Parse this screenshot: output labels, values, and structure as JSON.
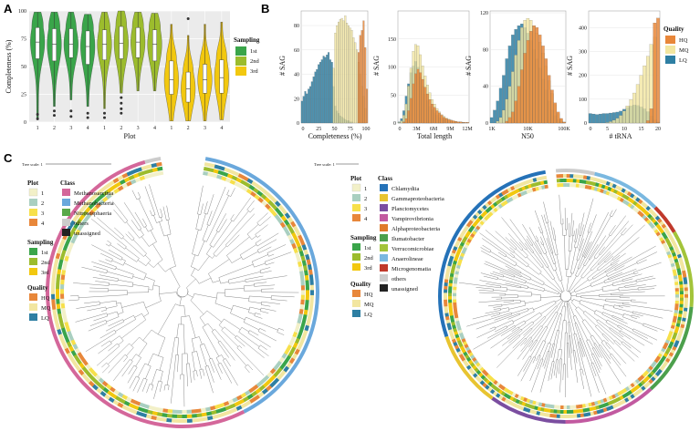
{
  "panels": {
    "a": "A",
    "b": "B",
    "c": "C"
  },
  "colors": {
    "sampling_1st": "#3aa54a",
    "sampling_2nd": "#9cbc2d",
    "sampling_3rd": "#f2c80f",
    "hq": "#e8873a",
    "mq": "#f2e6a0",
    "lq": "#2e7fa3",
    "plot1": "#f2f0c8",
    "plot2": "#a9cfc0",
    "plot3": "#f7e04a",
    "plot4": "#e8873a",
    "methanosarcinia": "#d4679a",
    "methanobacteria": "#6aa8dc",
    "nitrososphaeria": "#5aa84a",
    "others": "#cccccc",
    "unassigned": "#222222",
    "chlamydiia": "#2572b8",
    "gammaproteobacteria": "#e8c430",
    "planctomycetes": "#7b4ea0",
    "vampirovibrionia": "#c25aa0",
    "alphaproteobacteria": "#e07a2a",
    "ilumatobacter": "#4ca04c",
    "verrucomicrobiae": "#a3c43a",
    "anaerolineae": "#7ab8e0",
    "microgenomatia": "#c0392b",
    "grid": "#e6e6e6",
    "panel_bg": "#ebebeb"
  },
  "chart_data": [
    {
      "type": "violin",
      "id": "A",
      "xlabel": "Plot",
      "ylabel": "Completeness (%)",
      "categories": [
        "1",
        "2",
        "3",
        "4",
        "1",
        "2",
        "3",
        "4",
        "1",
        "2",
        "3",
        "4"
      ],
      "yticks": [
        0,
        25,
        50,
        75,
        100
      ],
      "ylim": [
        0,
        100
      ],
      "legend": {
        "title": "Sampling",
        "entries": [
          "1st",
          "2nd",
          "3rd"
        ]
      },
      "groups": [
        {
          "sampling": "1st",
          "median": 72,
          "q1": 57,
          "q3": 85,
          "lo": 2,
          "hi": 99,
          "outliers": [
            7,
            3
          ]
        },
        {
          "sampling": "1st",
          "median": 70,
          "q1": 55,
          "q3": 84,
          "lo": 14,
          "hi": 99,
          "outliers": [
            10,
            6
          ]
        },
        {
          "sampling": "1st",
          "median": 70,
          "q1": 58,
          "q3": 84,
          "lo": 20,
          "hi": 99,
          "outliers": [
            10,
            5
          ]
        },
        {
          "sampling": "1st",
          "median": 68,
          "q1": 52,
          "q3": 82,
          "lo": 14,
          "hi": 97,
          "outliers": [
            8,
            4
          ]
        },
        {
          "sampling": "2nd",
          "median": 70,
          "q1": 56,
          "q3": 83,
          "lo": 12,
          "hi": 99,
          "outliers": [
            8,
            4
          ]
        },
        {
          "sampling": "2nd",
          "median": 71,
          "q1": 57,
          "q3": 86,
          "lo": 26,
          "hi": 100,
          "outliers": [
            22,
            17,
            12,
            8
          ]
        },
        {
          "sampling": "2nd",
          "median": 72,
          "q1": 58,
          "q3": 85,
          "lo": 28,
          "hi": 99,
          "outliers": []
        },
        {
          "sampling": "2nd",
          "median": 70,
          "q1": 55,
          "q3": 83,
          "lo": 28,
          "hi": 98,
          "outliers": []
        },
        {
          "sampling": "3rd",
          "median": 38,
          "q1": 25,
          "q3": 55,
          "lo": 1,
          "hi": 88,
          "outliers": []
        },
        {
          "sampling": "3rd",
          "median": 30,
          "q1": 18,
          "q3": 45,
          "lo": 1,
          "hi": 78,
          "outliers": [
            93
          ]
        },
        {
          "sampling": "3rd",
          "median": 38,
          "q1": 26,
          "q3": 52,
          "lo": 1,
          "hi": 88,
          "outliers": []
        },
        {
          "sampling": "3rd",
          "median": 40,
          "q1": 26,
          "q3": 56,
          "lo": 2,
          "hi": 90,
          "outliers": []
        }
      ]
    },
    {
      "type": "histogram",
      "id": "B1",
      "xlabel": "Completeness (%)",
      "ylabel": "# SAG",
      "xticks": [
        "0",
        "25",
        "50",
        "75",
        "100"
      ],
      "xlim": [
        0,
        100
      ],
      "yticks": [
        0,
        20,
        40,
        60,
        80
      ],
      "ylim": [
        0,
        92
      ],
      "series": [
        {
          "name": "LQ",
          "values": [
            18,
            22,
            26,
            24,
            28,
            30,
            34,
            38,
            42,
            44,
            48,
            50,
            52,
            55,
            54,
            56,
            58,
            52,
            50,
            30,
            14,
            10,
            8,
            6,
            5,
            4,
            3,
            2,
            2,
            1,
            1,
            0,
            0,
            0,
            0,
            0,
            0,
            0,
            0,
            0
          ]
        },
        {
          "name": "MQ",
          "values": [
            0,
            0,
            0,
            0,
            0,
            0,
            0,
            0,
            0,
            0,
            0,
            0,
            0,
            0,
            0,
            0,
            0,
            0,
            0,
            45,
            74,
            80,
            83,
            85,
            86,
            84,
            88,
            82,
            80,
            78,
            76,
            70,
            66,
            60,
            50,
            40,
            30,
            22,
            12,
            0
          ]
        },
        {
          "name": "HQ",
          "values": [
            0,
            0,
            0,
            0,
            0,
            0,
            0,
            0,
            0,
            0,
            0,
            0,
            0,
            0,
            0,
            0,
            0,
            0,
            0,
            0,
            0,
            0,
            0,
            0,
            0,
            0,
            0,
            0,
            0,
            0,
            0,
            0,
            0,
            0,
            58,
            72,
            76,
            84,
            62,
            28
          ]
        }
      ]
    },
    {
      "type": "histogram",
      "id": "B2",
      "xlabel": "Total length",
      "ylabel": "# SAG",
      "xticks": [
        "0",
        "3M",
        "6M",
        "9M",
        "12M"
      ],
      "yticks": [
        0,
        50,
        100,
        150
      ],
      "ylim": [
        0,
        200
      ],
      "series": [
        {
          "name": "LQ",
          "values": [
            2,
            8,
            22,
            48,
            70,
            90,
            102,
            110,
            100,
            82,
            66,
            52,
            40,
            30,
            24,
            18,
            14,
            10,
            8,
            6,
            5,
            4,
            3,
            2,
            2,
            1,
            1,
            1,
            0,
            0
          ]
        },
        {
          "name": "MQ",
          "values": [
            1,
            4,
            14,
            34,
            66,
            98,
            128,
            140,
            138,
            122,
            102,
            84,
            68,
            54,
            42,
            34,
            26,
            20,
            15,
            12,
            9,
            7,
            5,
            4,
            3,
            2,
            2,
            1,
            1,
            1
          ]
        },
        {
          "name": "HQ",
          "values": [
            0,
            0,
            2,
            8,
            22,
            44,
            70,
            88,
            96,
            90,
            78,
            64,
            52,
            42,
            34,
            28,
            22,
            18,
            14,
            10,
            8,
            6,
            5,
            4,
            3,
            2,
            2,
            1,
            1,
            1
          ]
        }
      ]
    },
    {
      "type": "histogram",
      "id": "B3",
      "xlabel": "N50",
      "ylabel": "# SAG",
      "xticks": [
        "1K",
        "10K",
        "100K"
      ],
      "xscale": "log",
      "yticks": [
        0,
        40,
        80,
        120
      ],
      "ylim": [
        0,
        122
      ],
      "series": [
        {
          "name": "LQ",
          "values": [
            6,
            14,
            24,
            38,
            52,
            70,
            84,
            96,
            102,
            106,
            108,
            104,
            98,
            90,
            80,
            70,
            60,
            48,
            36,
            24,
            14,
            8,
            4,
            2,
            1
          ]
        },
        {
          "name": "MQ",
          "values": [
            0,
            0,
            2,
            6,
            14,
            26,
            40,
            56,
            74,
            90,
            104,
            112,
            114,
            112,
            106,
            98,
            88,
            76,
            62,
            46,
            32,
            20,
            10,
            4,
            1
          ]
        },
        {
          "name": "HQ",
          "values": [
            0,
            0,
            0,
            0,
            0,
            2,
            6,
            12,
            24,
            40,
            58,
            76,
            90,
            100,
            106,
            104,
            96,
            84,
            70,
            52,
            36,
            22,
            12,
            5,
            1
          ]
        }
      ]
    },
    {
      "type": "histogram",
      "id": "B4",
      "xlabel": "# tRNA",
      "ylabel": "# SAG",
      "xticks": [
        "0",
        "5",
        "10",
        "15",
        "20"
      ],
      "xlim": [
        0,
        21
      ],
      "yticks": [
        0,
        100,
        200,
        300,
        400
      ],
      "ylim": [
        0,
        470
      ],
      "legend": {
        "title": "Quality",
        "entries": [
          "HQ",
          "MQ",
          "LQ"
        ]
      },
      "series": [
        {
          "name": "LQ",
          "values": [
            40,
            38,
            36,
            38,
            40,
            40,
            42,
            44,
            46,
            50,
            58,
            66,
            72,
            76,
            74,
            68,
            60,
            48,
            30,
            14,
            4
          ]
        },
        {
          "name": "MQ",
          "values": [
            0,
            0,
            0,
            0,
            0,
            2,
            6,
            12,
            20,
            32,
            50,
            72,
            98,
            126,
            162,
            200,
            240,
            280,
            330,
            360,
            0
          ]
        },
        {
          "name": "HQ",
          "values": [
            0,
            0,
            0,
            0,
            0,
            0,
            0,
            0,
            0,
            0,
            0,
            0,
            0,
            0,
            0,
            0,
            0,
            10,
            60,
            420,
            440
          ]
        }
      ]
    }
  ],
  "panel_c": {
    "tree_scale_label": "Tree scale: 1",
    "legend_left": {
      "plot_title": "Plot",
      "plots": [
        "1",
        "2",
        "3",
        "4"
      ],
      "class_title": "Class",
      "classes": [
        "Methanosarcinia",
        "Methanobacteria",
        "Nitrososphaeria",
        "others",
        "unassigned"
      ],
      "sampling_title": "Sampling",
      "sampling": [
        "1st",
        "2nd",
        "3rd"
      ],
      "quality_title": "Quality",
      "quality": [
        "HQ",
        "MQ",
        "LQ"
      ]
    },
    "legend_right": {
      "plot_title": "Plot",
      "plots": [
        "1",
        "2",
        "3",
        "4"
      ],
      "class_title": "Class",
      "classes": [
        "Chlamydiia",
        "Gammaproteobacteria",
        "Planctomycetes",
        "Vampirovibrionia",
        "Alphaproteobacteria",
        "Ilumatobacter",
        "Verrucomicrobiae",
        "Anaerolineae",
        "Microgenomatia",
        "others",
        "unassigned"
      ],
      "sampling_title": "Sampling",
      "sampling": [
        "1st",
        "2nd",
        "3rd"
      ],
      "quality_title": "Quality",
      "quality": [
        "HQ",
        "MQ",
        "LQ"
      ]
    }
  }
}
